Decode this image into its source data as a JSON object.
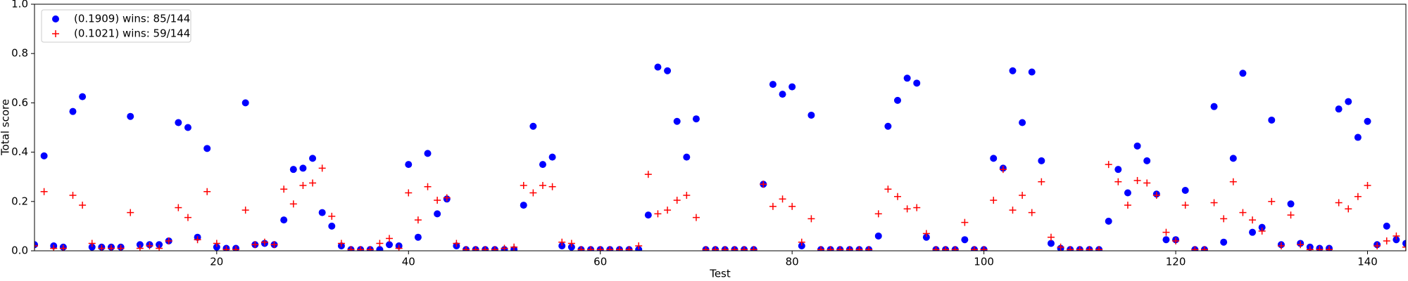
{
  "chart_data": {
    "type": "scatter",
    "x_label": "Test",
    "y_label": "Total score",
    "x": [
      1,
      2,
      3,
      4,
      5,
      6,
      7,
      8,
      9,
      10,
      11,
      12,
      13,
      14,
      15,
      16,
      17,
      18,
      19,
      20,
      21,
      22,
      23,
      24,
      25,
      26,
      27,
      28,
      29,
      30,
      31,
      32,
      33,
      34,
      35,
      36,
      37,
      38,
      39,
      40,
      41,
      42,
      43,
      44,
      45,
      46,
      47,
      48,
      49,
      50,
      51,
      52,
      53,
      54,
      55,
      56,
      57,
      58,
      59,
      60,
      61,
      62,
      63,
      64,
      65,
      66,
      67,
      68,
      69,
      70,
      71,
      72,
      73,
      74,
      75,
      76,
      77,
      78,
      79,
      80,
      81,
      82,
      83,
      84,
      85,
      86,
      87,
      88,
      89,
      90,
      91,
      92,
      93,
      94,
      95,
      96,
      97,
      98,
      99,
      100,
      101,
      102,
      103,
      104,
      105,
      106,
      107,
      108,
      109,
      110,
      111,
      112,
      113,
      114,
      115,
      116,
      117,
      118,
      119,
      120,
      121,
      122,
      123,
      124,
      125,
      126,
      127,
      128,
      129,
      130,
      131,
      132,
      133,
      134,
      135,
      136,
      137,
      138,
      139,
      140,
      141,
      142,
      143,
      144
    ],
    "series": [
      {
        "name": "(0.1909) wins: 85/144",
        "color": "#0000ff",
        "marker": "o",
        "values": [
          0.025,
          0.385,
          0.02,
          0.015,
          0.565,
          0.625,
          0.015,
          0.015,
          0.015,
          0.015,
          0.545,
          0.025,
          0.025,
          0.025,
          0.04,
          0.52,
          0.5,
          0.055,
          0.415,
          0.015,
          0.01,
          0.01,
          0.6,
          0.025,
          0.03,
          0.025,
          0.125,
          0.33,
          0.335,
          0.375,
          0.155,
          0.1,
          0.02,
          0.005,
          0.005,
          0.005,
          0.005,
          0.025,
          0.02,
          0.35,
          0.055,
          0.395,
          0.15,
          0.21,
          0.02,
          0.005,
          0.005,
          0.005,
          0.005,
          0.005,
          0.005,
          0.185,
          0.505,
          0.35,
          0.38,
          0.02,
          0.015,
          0.005,
          0.005,
          0.005,
          0.005,
          0.005,
          0.005,
          0.005,
          0.145,
          0.745,
          0.73,
          0.525,
          0.38,
          0.535,
          0.005,
          0.005,
          0.005,
          0.005,
          0.005,
          0.005,
          0.27,
          0.675,
          0.635,
          0.665,
          0.02,
          0.55,
          0.005,
          0.005,
          0.005,
          0.005,
          0.005,
          0.005,
          0.06,
          0.505,
          0.61,
          0.7,
          0.68,
          0.055,
          0.005,
          0.005,
          0.005,
          0.045,
          0.005,
          0.005,
          0.375,
          0.335,
          0.73,
          0.52,
          0.725,
          0.365,
          0.03,
          0.01,
          0.005,
          0.005,
          0.005,
          0.005,
          0.12,
          0.33,
          0.235,
          0.425,
          0.365,
          0.23,
          0.045,
          0.045,
          0.245,
          0.005,
          0.005,
          0.585,
          0.035,
          0.375,
          0.72,
          0.075,
          0.095,
          0.53,
          0.025,
          0.19,
          0.03,
          0.015,
          0.01,
          0.01,
          0.575,
          0.605,
          0.46,
          0.525,
          0.025,
          0.1,
          0.045,
          0.03
        ]
      },
      {
        "name": "(0.1021) wins: 59/144",
        "color": "#ff0000",
        "marker": "+",
        "values": [
          0.02,
          0.24,
          0.01,
          0.01,
          0.225,
          0.185,
          0.03,
          0.01,
          0.01,
          0.01,
          0.155,
          0.01,
          0.02,
          0.01,
          0.04,
          0.175,
          0.135,
          0.045,
          0.24,
          0.03,
          0.005,
          0.005,
          0.165,
          0.025,
          0.035,
          0.025,
          0.25,
          0.19,
          0.265,
          0.275,
          0.335,
          0.14,
          0.03,
          0.005,
          0.005,
          0.005,
          0.03,
          0.05,
          0.01,
          0.235,
          0.125,
          0.26,
          0.205,
          0.215,
          0.03,
          0.005,
          0.005,
          0.005,
          0.005,
          0.01,
          0.015,
          0.265,
          0.235,
          0.265,
          0.26,
          0.035,
          0.03,
          0.005,
          0.005,
          0.005,
          0.005,
          0.005,
          0.005,
          0.02,
          0.31,
          0.15,
          0.165,
          0.205,
          0.225,
          0.135,
          0.005,
          0.005,
          0.005,
          0.005,
          0.005,
          0.005,
          0.27,
          0.18,
          0.21,
          0.18,
          0.035,
          0.13,
          0.005,
          0.005,
          0.005,
          0.005,
          0.005,
          0.005,
          0.15,
          0.25,
          0.22,
          0.17,
          0.175,
          0.07,
          0.005,
          0.005,
          0.005,
          0.115,
          0.005,
          0.005,
          0.205,
          0.33,
          0.165,
          0.225,
          0.155,
          0.28,
          0.055,
          0.015,
          0.005,
          0.005,
          0.005,
          0.005,
          0.35,
          0.28,
          0.185,
          0.285,
          0.275,
          0.225,
          0.075,
          0.04,
          0.185,
          0.005,
          0.005,
          0.195,
          0.13,
          0.28,
          0.155,
          0.125,
          0.08,
          0.2,
          0.02,
          0.145,
          0.025,
          0.005,
          0.005,
          0.005,
          0.195,
          0.17,
          0.22,
          0.265,
          0.02,
          0.04,
          0.06,
          0.015
        ]
      }
    ],
    "xlim": [
      1,
      144
    ],
    "ylim": [
      0,
      1
    ],
    "xticks": [
      20,
      40,
      60,
      80,
      100,
      120,
      140
    ],
    "yticks": [
      {
        "value": 0,
        "label": "0.0"
      },
      0.2,
      0.4,
      0.6,
      0.8,
      {
        "value": 1,
        "label": "1.0"
      }
    ],
    "legend": "upper left"
  }
}
